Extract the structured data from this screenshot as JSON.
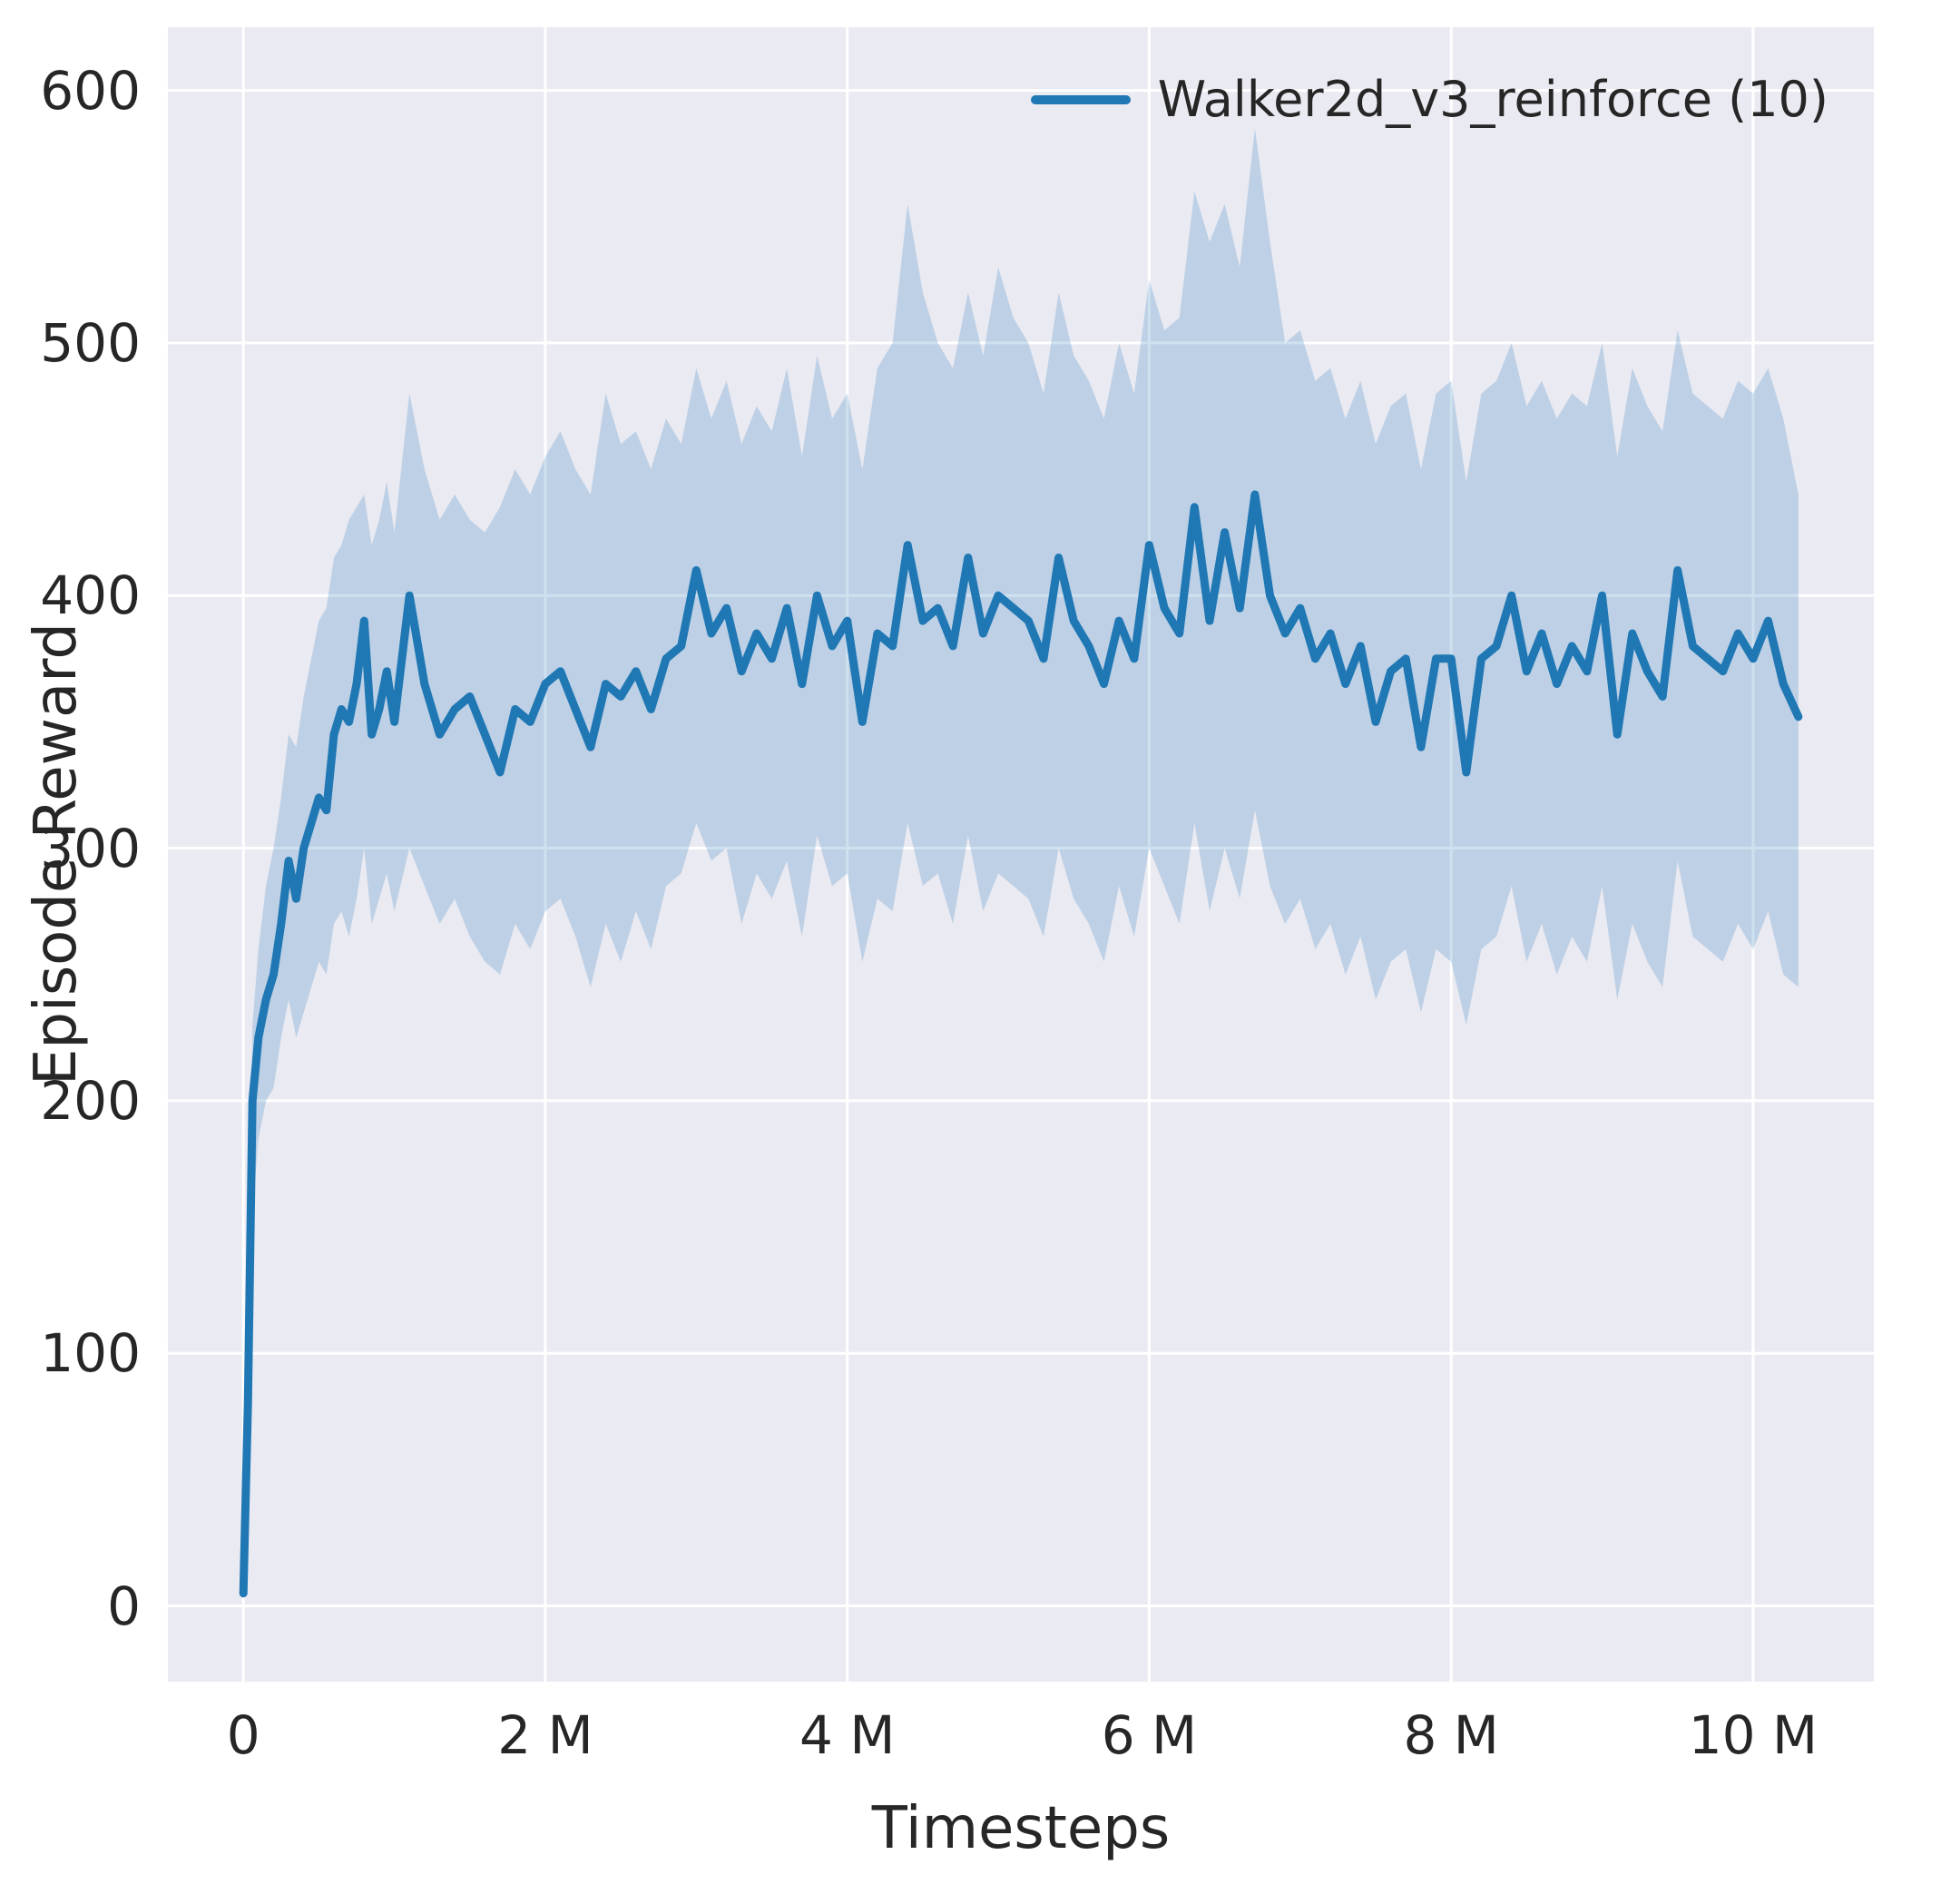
{
  "chart_data": {
    "type": "line",
    "title": "",
    "xlabel": "Timesteps",
    "ylabel": "Episode Reward",
    "grid": true,
    "legend_position": "upper right",
    "legend": [
      {
        "label": "Walker2d_v3_reinforce (10)",
        "color": "#1f77b4"
      }
    ],
    "x_unit": "millions",
    "xlim": [
      -0.5,
      10.8
    ],
    "ylim": [
      -30,
      625
    ],
    "x_ticks": {
      "values": [
        0,
        2,
        4,
        6,
        8,
        10
      ],
      "labels": [
        "0",
        "2 M",
        "4 M",
        "6 M",
        "8 M",
        "10 M"
      ]
    },
    "y_ticks": {
      "values": [
        0,
        100,
        200,
        300,
        400,
        500,
        600
      ],
      "labels": [
        "0",
        "100",
        "200",
        "300",
        "400",
        "500",
        "600"
      ]
    },
    "colors": {
      "line": "#1f77b4",
      "band": "#1f77b4",
      "band_opacity": 0.22,
      "plot_bg": "#eaeaf2",
      "grid": "#ffffff",
      "text": "#262626",
      "fig_bg": "#ffffff"
    },
    "series": [
      {
        "name": "Walker2d_v3_reinforce (10)",
        "color": "#1f77b4",
        "x": [
          0,
          0.03,
          0.06,
          0.1,
          0.15,
          0.2,
          0.25,
          0.3,
          0.35,
          0.4,
          0.45,
          0.5,
          0.55,
          0.6,
          0.65,
          0.7,
          0.75,
          0.8,
          0.85,
          0.9,
          0.95,
          1.0,
          1.1,
          1.2,
          1.3,
          1.4,
          1.5,
          1.6,
          1.7,
          1.8,
          1.9,
          2.0,
          2.1,
          2.2,
          2.3,
          2.4,
          2.5,
          2.6,
          2.7,
          2.8,
          2.9,
          3.0,
          3.1,
          3.2,
          3.3,
          3.4,
          3.5,
          3.6,
          3.7,
          3.8,
          3.9,
          4.0,
          4.1,
          4.2,
          4.3,
          4.4,
          4.5,
          4.6,
          4.7,
          4.8,
          4.9,
          5.0,
          5.1,
          5.2,
          5.3,
          5.4,
          5.5,
          5.6,
          5.7,
          5.8,
          5.9,
          6.0,
          6.1,
          6.2,
          6.3,
          6.4,
          6.5,
          6.6,
          6.7,
          6.8,
          6.9,
          7.0,
          7.1,
          7.2,
          7.3,
          7.4,
          7.5,
          7.6,
          7.7,
          7.8,
          7.9,
          8.0,
          8.1,
          8.2,
          8.3,
          8.4,
          8.5,
          8.6,
          8.7,
          8.8,
          8.9,
          9.0,
          9.1,
          9.2,
          9.3,
          9.4,
          9.5,
          9.6,
          9.7,
          9.8,
          9.9,
          10.0,
          10.1,
          10.2,
          10.3
        ],
        "mean": [
          5,
          80,
          200,
          225,
          240,
          250,
          270,
          295,
          280,
          300,
          310,
          320,
          315,
          345,
          355,
          350,
          365,
          390,
          345,
          355,
          370,
          350,
          400,
          365,
          345,
          355,
          360,
          345,
          330,
          355,
          350,
          365,
          370,
          355,
          340,
          365,
          360,
          370,
          355,
          375,
          380,
          410,
          385,
          395,
          370,
          385,
          375,
          395,
          365,
          400,
          380,
          390,
          350,
          385,
          380,
          420,
          390,
          395,
          380,
          415,
          385,
          400,
          395,
          390,
          375,
          415,
          390,
          380,
          365,
          390,
          375,
          420,
          395,
          385,
          435,
          390,
          425,
          395,
          440,
          400,
          385,
          395,
          375,
          385,
          365,
          380,
          350,
          370,
          375,
          340,
          375,
          375,
          330,
          375,
          380,
          400,
          370,
          385,
          365,
          380,
          370,
          400,
          345,
          385,
          370,
          360,
          410,
          380,
          375,
          370,
          385,
          375,
          390,
          365,
          352
        ],
        "band_lower": [
          3,
          60,
          155,
          185,
          200,
          205,
          225,
          240,
          225,
          235,
          245,
          255,
          250,
          270,
          275,
          265,
          280,
          300,
          270,
          280,
          290,
          275,
          300,
          285,
          270,
          280,
          265,
          255,
          250,
          270,
          260,
          275,
          280,
          265,
          245,
          270,
          255,
          275,
          260,
          285,
          290,
          310,
          295,
          300,
          270,
          290,
          280,
          295,
          265,
          305,
          285,
          290,
          255,
          280,
          275,
          310,
          285,
          290,
          270,
          305,
          275,
          290,
          285,
          280,
          265,
          300,
          280,
          270,
          255,
          285,
          265,
          300,
          285,
          270,
          310,
          275,
          300,
          280,
          315,
          285,
          270,
          280,
          260,
          270,
          250,
          265,
          240,
          255,
          260,
          235,
          260,
          255,
          230,
          260,
          265,
          285,
          255,
          270,
          250,
          265,
          255,
          285,
          240,
          270,
          255,
          245,
          295,
          265,
          260,
          255,
          270,
          260,
          275,
          250,
          245
        ],
        "band_upper": [
          8,
          100,
          230,
          260,
          285,
          300,
          320,
          345,
          340,
          360,
          375,
          390,
          395,
          415,
          420,
          430,
          435,
          440,
          420,
          430,
          445,
          425,
          480,
          450,
          430,
          440,
          430,
          425,
          435,
          450,
          440,
          455,
          465,
          450,
          440,
          480,
          460,
          465,
          450,
          470,
          460,
          490,
          470,
          485,
          460,
          475,
          465,
          490,
          455,
          495,
          470,
          480,
          450,
          490,
          500,
          555,
          520,
          500,
          490,
          520,
          495,
          530,
          510,
          500,
          480,
          520,
          495,
          485,
          470,
          500,
          480,
          525,
          505,
          510,
          560,
          540,
          555,
          530,
          585,
          540,
          500,
          505,
          485,
          490,
          470,
          485,
          460,
          475,
          480,
          450,
          480,
          485,
          445,
          480,
          485,
          500,
          475,
          485,
          470,
          480,
          475,
          500,
          455,
          490,
          475,
          465,
          505,
          480,
          475,
          470,
          485,
          480,
          490,
          470,
          440
        ]
      }
    ]
  }
}
